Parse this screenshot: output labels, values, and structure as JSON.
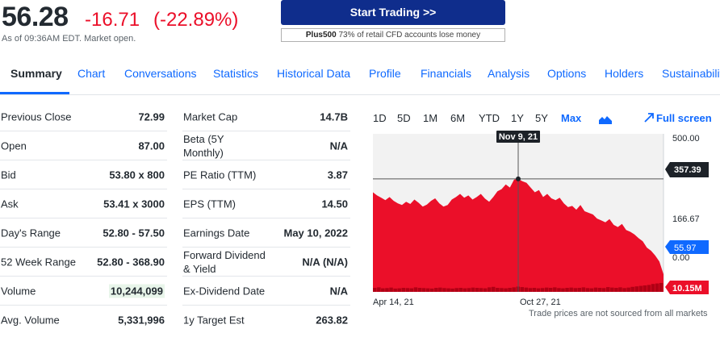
{
  "quote": {
    "price": "56.28",
    "change": "-16.71",
    "change_pct": "(-22.89%)",
    "note": "As of 09:36AM EDT. Market open."
  },
  "ad": {
    "button_label": "Start Trading >>",
    "disclaimer_brand": "Plus500",
    "disclaimer_text": "73% of retail CFD accounts lose money"
  },
  "tabs": [
    {
      "label": "Summary",
      "active": true
    },
    {
      "label": "Chart"
    },
    {
      "label": "Conversations"
    },
    {
      "label": "Statistics"
    },
    {
      "label": "Historical Data"
    },
    {
      "label": "Profile"
    },
    {
      "label": "Financials"
    },
    {
      "label": "Analysis"
    },
    {
      "label": "Options"
    },
    {
      "label": "Holders"
    },
    {
      "label": "Sustainability"
    }
  ],
  "stats_left": [
    {
      "label": "Previous Close",
      "value": "72.99"
    },
    {
      "label": "Open",
      "value": "87.00"
    },
    {
      "label": "Bid",
      "value": "53.80 x 800"
    },
    {
      "label": "Ask",
      "value": "53.41 x 3000"
    },
    {
      "label": "Day's Range",
      "value": "52.80 - 57.50"
    },
    {
      "label": "52 Week Range",
      "value": "52.80 - 368.90"
    },
    {
      "label": "Volume",
      "value": "10,244,099"
    },
    {
      "label": "Avg. Volume",
      "value": "5,331,996"
    }
  ],
  "stats_right": [
    {
      "label": "Market Cap",
      "value": "14.7B"
    },
    {
      "label": "Beta (5Y Monthly)",
      "value": "N/A"
    },
    {
      "label": "PE Ratio (TTM)",
      "value": "3.87"
    },
    {
      "label": "EPS (TTM)",
      "value": "14.50"
    },
    {
      "label": "Earnings Date",
      "value": "May 10, 2022"
    },
    {
      "label": "Forward Dividend & Yield",
      "value": "N/A (N/A)"
    },
    {
      "label": "Ex-Dividend Date",
      "value": "N/A"
    },
    {
      "label": "1y Target Est",
      "value": "263.82"
    }
  ],
  "chart": {
    "ranges": [
      "1D",
      "5D",
      "1M",
      "6M",
      "YTD",
      "1Y",
      "5Y",
      "Max"
    ],
    "active_range": "Max",
    "fullscreen_label": "Full screen",
    "footnote": "Trade prices are not sourced from all markets",
    "icons": {
      "chart_type": "mountain-chart-icon",
      "fullscreen": "expand-arrow-icon"
    },
    "colors": {
      "area": "#eb0f29",
      "pre_area": "#f2f2f2",
      "label_blue": "#0f69ff",
      "label_dark": "#1d2228",
      "label_red": "#eb0f29"
    }
  },
  "chart_data": {
    "type": "area",
    "x_tick_labels": [
      "Apr 14, 21",
      "Oct 27, 21"
    ],
    "y_tick_labels": [
      "500.00",
      "166.67",
      "0.00"
    ],
    "ylim": [
      0,
      500
    ],
    "crosshair": {
      "date_label": "Nov 9, 21",
      "price_label": "357.39",
      "value": 357.39
    },
    "current_price_label": "55.97",
    "current_price": 55.97,
    "volume_label": "10.15M",
    "series": [
      {
        "values": [
          315,
          305,
          298,
          290,
          300,
          288,
          280,
          275,
          285,
          278,
          292,
          282,
          270,
          276,
          288,
          296,
          280,
          270,
          275,
          292,
          300,
          310,
          298,
          305,
          292,
          300,
          310,
          295,
          285,
          300,
          318,
          325,
          340,
          330,
          355,
          357.39,
          350,
          345,
          330,
          315,
          322,
          300,
          310,
          296,
          290,
          298,
          280,
          268,
          272,
          260,
          275,
          255,
          250,
          245,
          232,
          226,
          220,
          230,
          212,
          205,
          215,
          196,
          190,
          182,
          170,
          160,
          140,
          130,
          115,
          96,
          55.97
        ],
        "area_filled_from": 0.0
      }
    ],
    "volume_series": [
      10,
      12,
      8,
      9,
      11,
      7,
      8,
      10,
      9,
      8,
      12,
      10,
      9,
      8,
      7,
      10,
      11,
      9,
      8,
      7,
      9,
      10,
      8,
      9,
      11,
      10,
      9,
      8,
      12,
      14,
      10,
      9,
      8,
      10,
      12,
      15,
      13,
      11,
      9,
      10,
      8,
      9,
      11,
      10,
      12,
      9,
      8,
      10,
      11,
      9,
      10,
      12,
      9,
      8,
      11,
      10,
      9,
      13,
      11,
      10,
      12,
      9,
      11,
      14,
      16,
      18,
      20,
      22,
      26,
      28,
      30
    ]
  }
}
